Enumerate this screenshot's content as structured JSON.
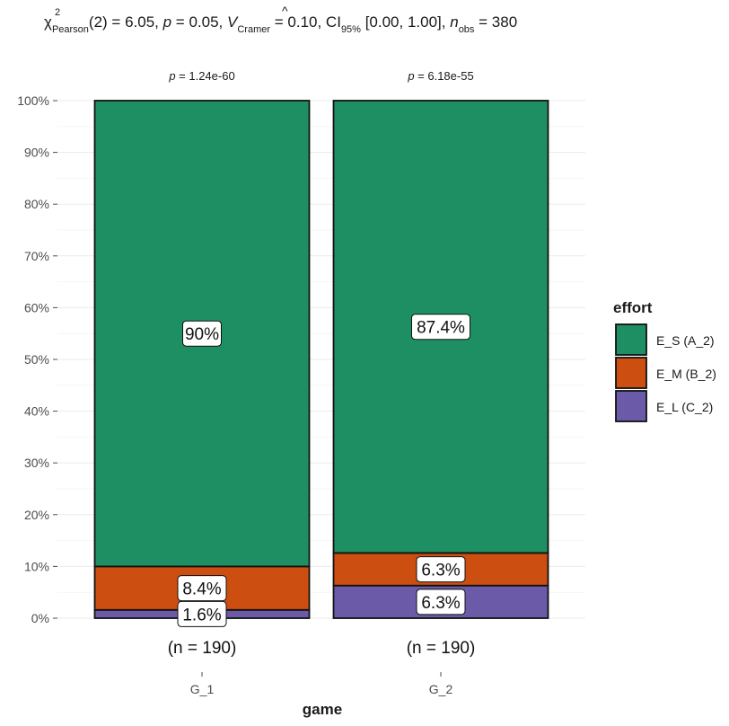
{
  "chart_data": {
    "type": "bar",
    "stacked": "percent",
    "subtitle": {
      "chi_sym": "χ",
      "chi_sup": "2",
      "chi_sub": "Pearson",
      "part1": "(2) = 6.05, ",
      "p_sym": "p",
      "part2": " = 0.05, ",
      "v_sym": "V",
      "v_hat": "^",
      "v_sub": "Cramer",
      "part3": " = 0.10, CI",
      "ci_sub": "95%",
      "part4": " [0.00, 1.00], ",
      "n_sym": "n",
      "n_sub": "obs",
      "part5": " = 380"
    },
    "xlabel": "game",
    "ylabel": "",
    "ylim": [
      0,
      100
    ],
    "yticks": [
      "0%",
      "10%",
      "20%",
      "30%",
      "40%",
      "50%",
      "60%",
      "70%",
      "80%",
      "90%",
      "100%"
    ],
    "grid": true,
    "categories": [
      "G_1",
      "G_2"
    ],
    "category_ticks": [
      "G_1",
      "G_2"
    ],
    "counts": [
      "(n = 190)",
      "(n = 190)"
    ],
    "pvalues": [
      {
        "sym": "p",
        "text": " = 1.24e-60"
      },
      {
        "sym": "p",
        "text": " = 6.18e-55"
      }
    ],
    "legend": {
      "title": "effort",
      "placement": "right",
      "entries": [
        "E_S (A_2)",
        "E_M (B_2)",
        "E_L (C_2)"
      ]
    },
    "series": [
      {
        "key": "E_L",
        "values": [
          1.6,
          6.3
        ],
        "labels": [
          "1.6%",
          "6.3%"
        ],
        "color": "#6a5aa8"
      },
      {
        "key": "E_M",
        "values": [
          8.4,
          6.3
        ],
        "labels": [
          "8.4%",
          "6.3%"
        ],
        "color": "#cc4e10"
      },
      {
        "key": "E_S",
        "values": [
          90,
          87.4
        ],
        "labels": [
          "90%",
          "87.4%"
        ],
        "color": "#1e8f63"
      }
    ]
  }
}
